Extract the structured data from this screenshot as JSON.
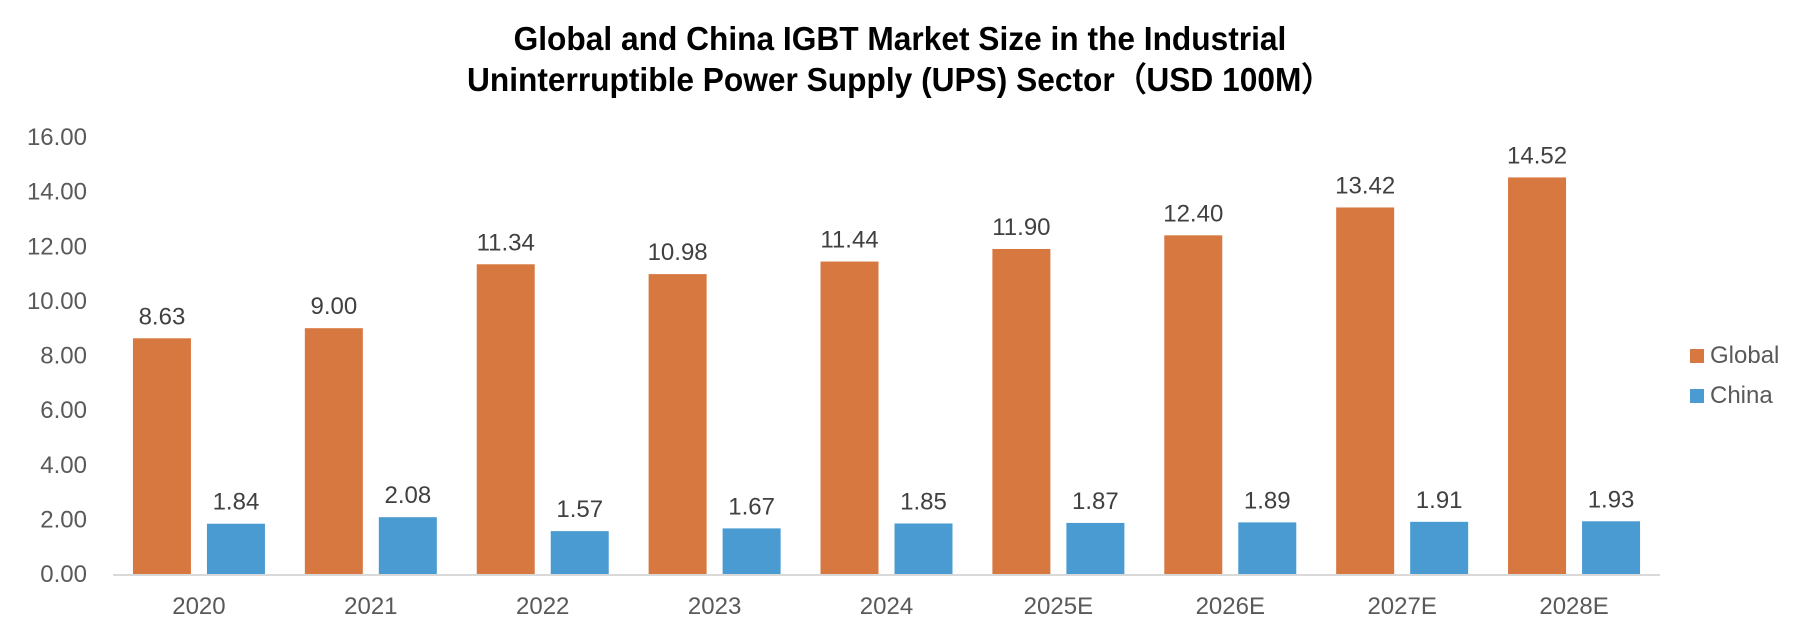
{
  "chart_data": {
    "type": "bar",
    "title": "Global and China IGBT Market Size in the Industrial Uninterruptible Power Supply (UPS) Sector（USD 100M）",
    "title_lines": [
      "Global and China IGBT Market Size in the Industrial",
      "Uninterruptible Power Supply (UPS) Sector（USD 100M）"
    ],
    "xlabel": "",
    "ylabel": "",
    "categories": [
      "2020",
      "2021",
      "2022",
      "2023",
      "2024",
      "2025E",
      "2026E",
      "2027E",
      "2028E"
    ],
    "series": [
      {
        "name": "Global",
        "color": "#D87841",
        "values": [
          8.63,
          9.0,
          11.34,
          10.98,
          11.44,
          11.9,
          12.4,
          13.42,
          14.52
        ],
        "labels": [
          "8.63",
          "9.00",
          "11.34",
          "10.98",
          "11.44",
          "11.90",
          "12.40",
          "13.42",
          "14.52"
        ]
      },
      {
        "name": "China",
        "color": "#4A9BD2",
        "values": [
          1.84,
          2.08,
          1.57,
          1.67,
          1.85,
          1.87,
          1.89,
          1.91,
          1.93
        ],
        "labels": [
          "1.84",
          "2.08",
          "1.57",
          "1.67",
          "1.85",
          "1.87",
          "1.89",
          "1.91",
          "1.93"
        ]
      }
    ],
    "ylim": [
      0,
      16
    ],
    "yticks": [
      "0.00",
      "2.00",
      "4.00",
      "6.00",
      "8.00",
      "10.00",
      "12.00",
      "14.00",
      "16.00"
    ],
    "grid": false,
    "legend_position": "right",
    "data_labels": true
  }
}
